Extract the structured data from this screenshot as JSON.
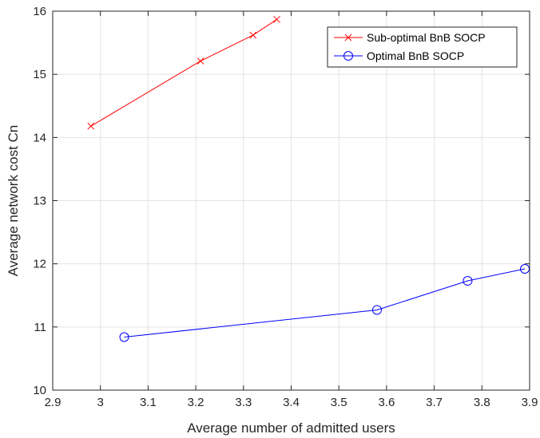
{
  "chart_data": {
    "type": "line",
    "xlabel": "Average number of admitted users",
    "ylabel": "Average network cost Cn",
    "xlim": [
      2.9,
      3.9
    ],
    "ylim": [
      10,
      16
    ],
    "xticks": [
      2.9,
      3.0,
      3.1,
      3.2,
      3.3,
      3.4,
      3.5,
      3.6,
      3.7,
      3.8,
      3.9
    ],
    "xtick_labels": [
      "2.9",
      "3",
      "3.1",
      "3.2",
      "3.3",
      "3.4",
      "3.5",
      "3.6",
      "3.7",
      "3.8",
      "3.9"
    ],
    "yticks": [
      10,
      11,
      12,
      13,
      14,
      15,
      16
    ],
    "ytick_labels": [
      "10",
      "11",
      "12",
      "13",
      "14",
      "15",
      "16"
    ],
    "grid": true,
    "legend_position": "top-right",
    "series": [
      {
        "name": "Sub-optimal BnB SOCP",
        "color": "#ff0000",
        "marker": "x",
        "x": [
          2.98,
          3.21,
          3.32,
          3.37
        ],
        "y": [
          14.18,
          15.21,
          15.62,
          15.87
        ]
      },
      {
        "name": "Optimal BnB SOCP",
        "color": "#0000ff",
        "marker": "circle",
        "x": [
          3.05,
          3.58,
          3.77,
          3.89
        ],
        "y": [
          10.84,
          11.27,
          11.73,
          11.92
        ]
      }
    ]
  }
}
